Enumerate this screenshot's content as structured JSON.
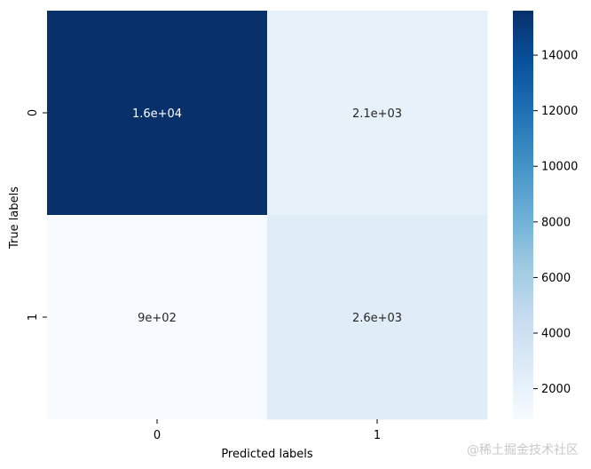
{
  "chart_data": {
    "type": "heatmap",
    "title": "",
    "xlabel": "Predicted labels",
    "ylabel": "True labels",
    "x_categories": [
      "0",
      "1"
    ],
    "y_categories": [
      "0",
      "1"
    ],
    "values": [
      [
        15600,
        2100
      ],
      [
        900,
        2600
      ]
    ],
    "annotations": [
      [
        "1.6e+04",
        "2.1e+03"
      ],
      [
        "9e+02",
        "2.6e+03"
      ]
    ],
    "colormap": "Blues",
    "colorbar": {
      "ticks": [
        2000,
        4000,
        6000,
        8000,
        10000,
        12000,
        14000
      ],
      "tick_labels": [
        "2000",
        "4000",
        "6000",
        "8000",
        "10000",
        "12000",
        "14000"
      ],
      "range": [
        900,
        15600
      ]
    }
  },
  "watermark": "@稀土掘金技术社区"
}
